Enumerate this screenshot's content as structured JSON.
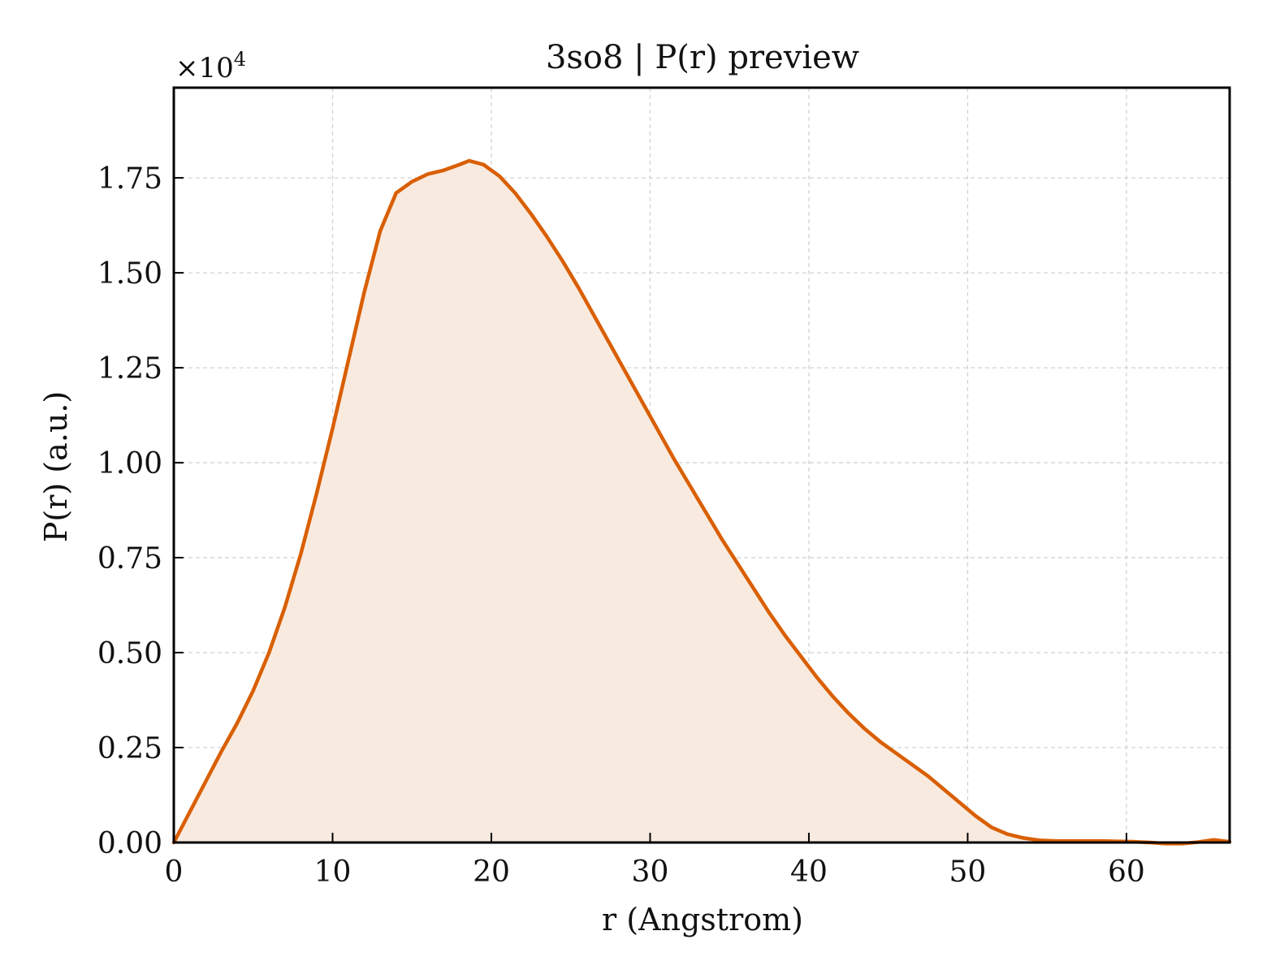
{
  "chart_data": {
    "type": "area",
    "title": "3so8 | P(r) preview",
    "xlabel": "r (Angstrom)",
    "ylabel": "P(r) (a.u.)",
    "y_multiplier_label": "×10",
    "y_multiplier_exponent": "4",
    "xlim": [
      0,
      66.5
    ],
    "ylim": [
      0,
      1.9875
    ],
    "x_ticks": [
      0,
      10,
      20,
      30,
      40,
      50,
      60
    ],
    "x_tick_labels": [
      "0",
      "10",
      "20",
      "30",
      "40",
      "50",
      "60"
    ],
    "y_ticks": [
      0,
      0.25,
      0.5,
      0.75,
      1.0,
      1.25,
      1.5,
      1.75
    ],
    "y_tick_labels": [
      "0.00",
      "0.25",
      "0.50",
      "0.75",
      "1.00",
      "1.25",
      "1.50",
      "1.75"
    ],
    "grid": true,
    "legend": "none",
    "colors": {
      "line": "#d95f02",
      "fill": "#f9eadf",
      "grid": "#d3d3d3",
      "axes": "#000000"
    },
    "series": [
      {
        "x": [
          0,
          1,
          2,
          3,
          4,
          5,
          6,
          7,
          8,
          9,
          10,
          11,
          12,
          13,
          14,
          15,
          16,
          17,
          18,
          18.6,
          19.5,
          20.5,
          21.5,
          22.5,
          23.5,
          24.5,
          25.5,
          26.5,
          27.5,
          28.5,
          29.5,
          30.5,
          31.5,
          32.5,
          33.5,
          34.5,
          35.5,
          36.5,
          37.5,
          38.5,
          39.5,
          40.5,
          41.5,
          42.5,
          43.5,
          44.5,
          45.5,
          46.5,
          47.5,
          48.5,
          49.5,
          50.5,
          51.5,
          52.5,
          53.5,
          54.5,
          55.5,
          56.5,
          57.5,
          58.5,
          59.5,
          60.5,
          61.5,
          62.5,
          63.5,
          64.5,
          65.5,
          66.5
        ],
        "y": [
          0.0,
          0.08,
          0.16,
          0.24,
          0.315,
          0.4,
          0.5,
          0.62,
          0.76,
          0.92,
          1.09,
          1.27,
          1.45,
          1.61,
          1.71,
          1.74,
          1.76,
          1.77,
          1.785,
          1.795,
          1.785,
          1.755,
          1.71,
          1.655,
          1.595,
          1.53,
          1.46,
          1.385,
          1.31,
          1.235,
          1.16,
          1.085,
          1.01,
          0.94,
          0.87,
          0.8,
          0.735,
          0.67,
          0.605,
          0.545,
          0.49,
          0.435,
          0.385,
          0.34,
          0.3,
          0.265,
          0.235,
          0.205,
          0.175,
          0.14,
          0.105,
          0.07,
          0.04,
          0.022,
          0.012,
          0.006,
          0.004,
          0.004,
          0.004,
          0.004,
          0.003,
          0.002,
          0.0,
          -0.003,
          -0.003,
          0.001,
          0.007,
          0.002
        ]
      }
    ]
  }
}
